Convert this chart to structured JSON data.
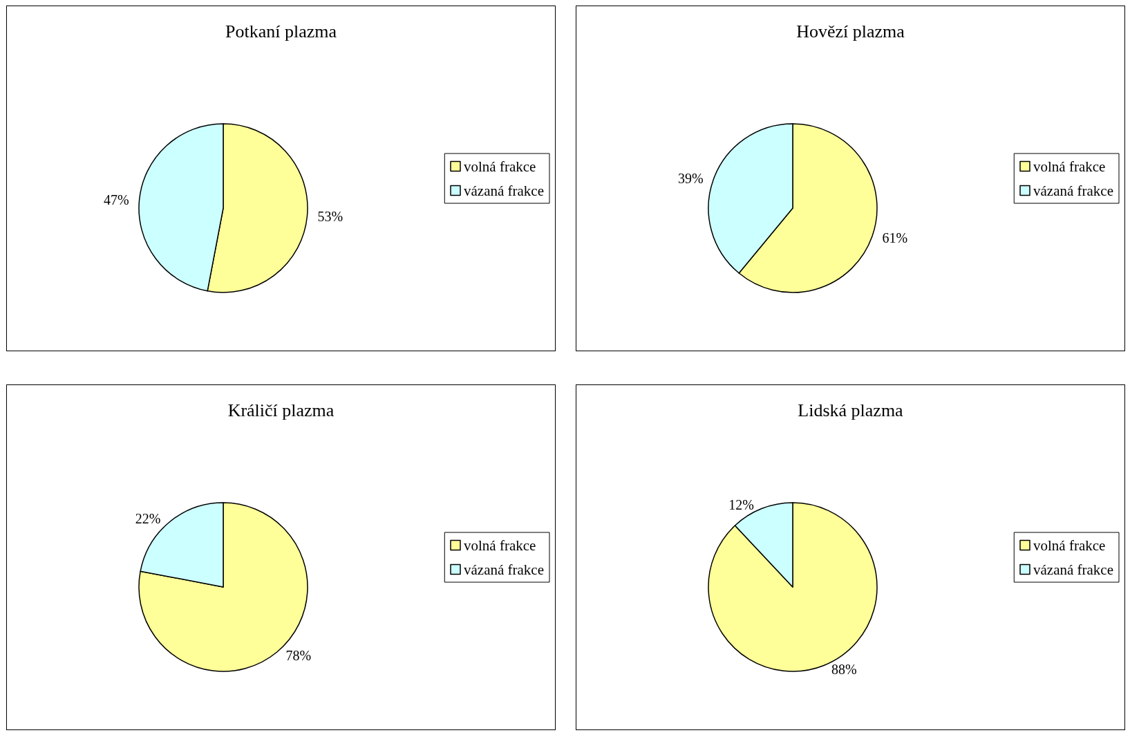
{
  "chart_data": [
    {
      "type": "pie",
      "title": "Potkaní plazma",
      "categories": [
        "volná frakce",
        "vázaná frakce"
      ],
      "values": [
        53,
        47
      ],
      "value_labels": [
        "53%",
        "47%"
      ],
      "colors": [
        "#ffff99",
        "#ccffff"
      ],
      "legend": "right"
    },
    {
      "type": "pie",
      "title": "Hovězí plazma",
      "categories": [
        "volná frakce",
        "vázaná frakce"
      ],
      "values": [
        61,
        39
      ],
      "value_labels": [
        "61%",
        "39%"
      ],
      "colors": [
        "#ffff99",
        "#ccffff"
      ],
      "legend": "right"
    },
    {
      "type": "pie",
      "title": "Králičí plazma",
      "categories": [
        "volná frakce",
        "vázaná frakce"
      ],
      "values": [
        78,
        22
      ],
      "value_labels": [
        "78%",
        "22%"
      ],
      "colors": [
        "#ffff99",
        "#ccffff"
      ],
      "legend": "right"
    },
    {
      "type": "pie",
      "title": "Lidská plazma",
      "categories": [
        "volná frakce",
        "vázaná frakce"
      ],
      "values": [
        88,
        12
      ],
      "value_labels": [
        "88%",
        "12%"
      ],
      "colors": [
        "#ffff99",
        "#ccffff"
      ],
      "legend": "right"
    }
  ]
}
